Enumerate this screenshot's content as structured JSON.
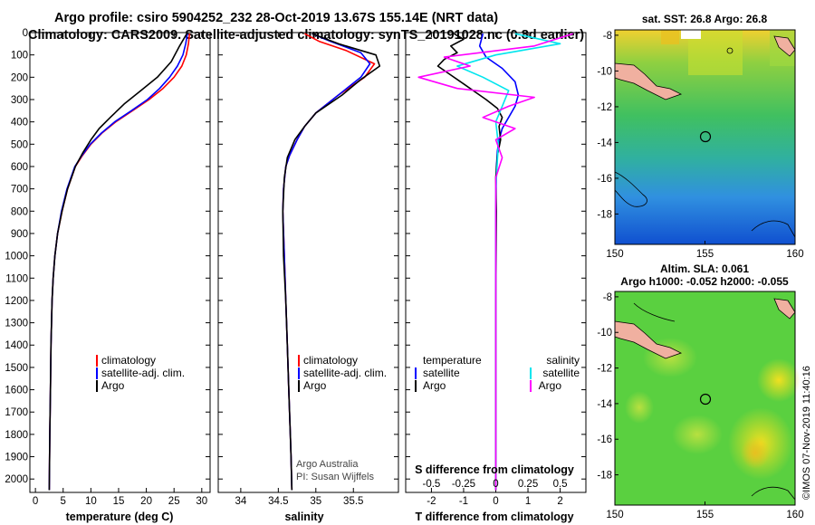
{
  "title": {
    "line1": "Argo profile: csiro 5904252_232 28-Oct-2019 13.67S 155.14E (NRT data)",
    "line2": "Climatology: CARS2009. Satellite-adjusted climatology: synTS_20191028.nc (0.8d earlier)"
  },
  "colors": {
    "climatology": "#ff0000",
    "satellite": "#0000ff",
    "argo": "#000000",
    "sal_satellite": "#00e5ee",
    "sal_argo": "#ff00ff"
  },
  "depth_ticks": [
    0,
    100,
    200,
    300,
    400,
    500,
    600,
    700,
    800,
    900,
    1000,
    1100,
    1200,
    1300,
    1400,
    1500,
    1600,
    1700,
    1800,
    1900,
    2000
  ],
  "chart_data": [
    {
      "type": "line",
      "title": "temperature",
      "xlabel": "temperature (deg C)",
      "ylabel": "depth",
      "xlim": [
        -1,
        31.5
      ],
      "ylim": [
        2060,
        0
      ],
      "xticks": [
        0,
        5,
        10,
        15,
        20,
        25,
        30
      ],
      "legend": [
        "climatology",
        "satellite-adj. clim.",
        "Argo"
      ],
      "series": [
        {
          "name": "climatology",
          "x": [
            27.8,
            27.6,
            27.2,
            26.4,
            25.0,
            23.0,
            20.5,
            17.5,
            14.5,
            12.0,
            10.0,
            8.5,
            7.2,
            5.8,
            4.8,
            4.0,
            3.5,
            3.2,
            3.0,
            2.9,
            2.8,
            2.7,
            2.6,
            2.5
          ],
          "depth": [
            5,
            50,
            100,
            150,
            200,
            250,
            300,
            350,
            400,
            450,
            500,
            550,
            600,
            700,
            800,
            900,
            1000,
            1100,
            1200,
            1300,
            1400,
            1600,
            1800,
            2050
          ]
        },
        {
          "name": "satellite-adj. clim.",
          "x": [
            27.4,
            27.1,
            26.6,
            25.6,
            24.2,
            22.4,
            20.2,
            17.3,
            14.3,
            11.9,
            9.9,
            8.4,
            7.1,
            5.7,
            4.7,
            4.0,
            3.5,
            3.2,
            3.0,
            2.9,
            2.8,
            2.7,
            2.6,
            2.5
          ],
          "depth": [
            5,
            50,
            100,
            150,
            200,
            250,
            300,
            350,
            400,
            450,
            500,
            550,
            600,
            700,
            800,
            900,
            1000,
            1100,
            1200,
            1300,
            1400,
            1600,
            1800,
            2050
          ]
        },
        {
          "name": "Argo",
          "x": [
            27.3,
            26.0,
            24.5,
            22.0,
            19.0,
            16.0,
            13.5,
            11.5,
            10.0,
            8.5,
            7.2,
            5.8,
            4.8,
            4.0,
            3.5,
            3.2,
            3.0,
            2.9,
            2.8,
            2.7,
            2.6,
            2.5
          ],
          "depth": [
            5,
            60,
            130,
            200,
            260,
            320,
            380,
            430,
            480,
            540,
            600,
            700,
            800,
            900,
            1000,
            1100,
            1200,
            1300,
            1400,
            1600,
            1800,
            2050
          ]
        }
      ]
    },
    {
      "type": "line",
      "title": "salinity",
      "xlabel": "salinity",
      "ylabel": "depth",
      "xlim": [
        33.7,
        36.1
      ],
      "ylim": [
        2060,
        0
      ],
      "xticks": [
        34,
        34.5,
        35,
        35.5
      ],
      "legend": [
        "climatology",
        "satellite-adj. clim.",
        "Argo"
      ],
      "series": [
        {
          "name": "climatology",
          "x": [
            34.85,
            35.05,
            35.4,
            35.78,
            35.65,
            35.3,
            35.0,
            34.85,
            34.75,
            34.65,
            34.6,
            34.57,
            34.56,
            34.58,
            34.6,
            34.62,
            34.64,
            34.66,
            34.67,
            34.68
          ],
          "depth": [
            5,
            40,
            80,
            140,
            200,
            280,
            360,
            420,
            480,
            550,
            600,
            700,
            800,
            1000,
            1200,
            1400,
            1600,
            1800,
            1900,
            2050
          ]
        },
        {
          "name": "satellite-adj. clim.",
          "x": [
            34.95,
            35.2,
            35.6,
            35.72,
            35.6,
            35.3,
            35.0,
            34.85,
            34.75,
            34.65,
            34.6,
            34.57,
            34.56,
            34.58,
            34.6,
            34.62,
            34.64,
            34.66,
            34.67,
            34.68
          ],
          "depth": [
            5,
            40,
            90,
            140,
            200,
            280,
            360,
            420,
            480,
            550,
            600,
            700,
            800,
            1000,
            1200,
            1400,
            1600,
            1800,
            1900,
            2050
          ]
        },
        {
          "name": "Argo",
          "x": [
            34.95,
            35.3,
            35.8,
            35.85,
            35.6,
            35.35,
            35.0,
            34.85,
            34.72,
            34.62,
            34.58,
            34.56,
            34.57,
            34.6,
            34.62,
            34.64,
            34.66,
            34.67,
            34.68
          ],
          "depth": [
            5,
            50,
            100,
            150,
            210,
            280,
            360,
            420,
            480,
            560,
            650,
            800,
            1000,
            1200,
            1400,
            1600,
            1800,
            1900,
            2050
          ]
        }
      ],
      "annotations": [
        "Argo Australia",
        "PI: Susan Wijffels"
      ]
    },
    {
      "type": "line",
      "title": "difference from climatology",
      "xlabel": "T difference from climatology",
      "secondary_xlabel": "S difference from climatology",
      "ylabel": "depth",
      "xlim": [
        -2.8,
        2.8
      ],
      "ylim": [
        2060,
        0
      ],
      "xticks": [
        -2,
        -1,
        0,
        1,
        2
      ],
      "secondary_xticks": [
        "-0.5",
        "-0.25",
        "0",
        "0.25",
        "0.5"
      ],
      "legend_temperature": [
        "temperature",
        "satellite",
        "Argo"
      ],
      "legend_salinity": [
        "salinity",
        "satellite",
        "Argo"
      ],
      "series": [
        {
          "name": "temperature satellite",
          "x": [
            -0.4,
            -0.5,
            -0.3,
            0.2,
            0.6,
            0.7,
            0.6,
            0.4,
            0.2,
            0.1,
            0.05,
            0.02,
            0.0,
            0.0,
            0.0,
            0.0
          ],
          "depth": [
            5,
            60,
            110,
            160,
            220,
            280,
            330,
            380,
            430,
            480,
            530,
            600,
            800,
            1200,
            1600,
            2050
          ]
        },
        {
          "name": "temperature Argo",
          "x": [
            -1.3,
            -1.0,
            -1.4,
            -1.2,
            -1.6,
            -1.8,
            -1.4,
            -1.0,
            -0.6,
            -0.3,
            0.05,
            0.2,
            0.1,
            0.15,
            0.05,
            0.0,
            0.02,
            0.0,
            0.0
          ],
          "depth": [
            5,
            30,
            60,
            90,
            120,
            150,
            190,
            230,
            270,
            300,
            340,
            380,
            420,
            480,
            550,
            650,
            800,
            1200,
            2050
          ]
        },
        {
          "name": "salinity satellite",
          "x": [
            0.15,
            0.5,
            0.0,
            -0.3,
            -0.1,
            0.1,
            0.05,
            0.0,
            0.02,
            0.0,
            0.0,
            0.0
          ],
          "depth": [
            5,
            50,
            100,
            150,
            200,
            260,
            330,
            400,
            500,
            700,
            1200,
            2050
          ]
        },
        {
          "name": "salinity Argo",
          "x": [
            0.6,
            0.3,
            -0.4,
            -0.2,
            -0.6,
            -0.3,
            0.3,
            0.1,
            -0.1,
            0.15,
            0.0,
            0.05,
            0.0,
            0.0,
            0.0
          ],
          "depth": [
            5,
            60,
            110,
            150,
            200,
            250,
            290,
            330,
            380,
            430,
            480,
            560,
            650,
            1000,
            2050
          ]
        }
      ]
    },
    {
      "type": "heatmap",
      "title": "sat. SST: 26.8 Argo: 26.8",
      "xticks": [
        150,
        155,
        160
      ],
      "yticks": [
        -8,
        -10,
        -12,
        -14,
        -16,
        -18
      ],
      "marker": {
        "lon": 155.14,
        "lat": -13.67
      }
    },
    {
      "type": "heatmap",
      "title": "Altim. SLA: 0.061",
      "subtitle": "Argo h1000: -0.052 h2000: -0.055",
      "xticks": [
        150,
        155,
        160
      ],
      "yticks": [
        -8,
        -10,
        -12,
        -14,
        -16,
        -18
      ],
      "marker": {
        "lon": 155.14,
        "lat": -13.67
      }
    }
  ],
  "legend_labels": {
    "climatology": "climatology",
    "satellite_adj": "satellite-adj. clim.",
    "argo": "Argo",
    "temperature": "temperature",
    "salinity": "salinity",
    "satellite": "satellite"
  },
  "axis_labels": {
    "temperature": "temperature (deg C)",
    "salinity": "salinity",
    "tdiff": "T difference from climatology",
    "sdiff": "S difference from climatology"
  },
  "annotations": {
    "argo_australia": "Argo Australia",
    "pi": "PI: Susan Wijffels"
  },
  "footer": "©IMOS 07-Nov-2019 11:40:16"
}
